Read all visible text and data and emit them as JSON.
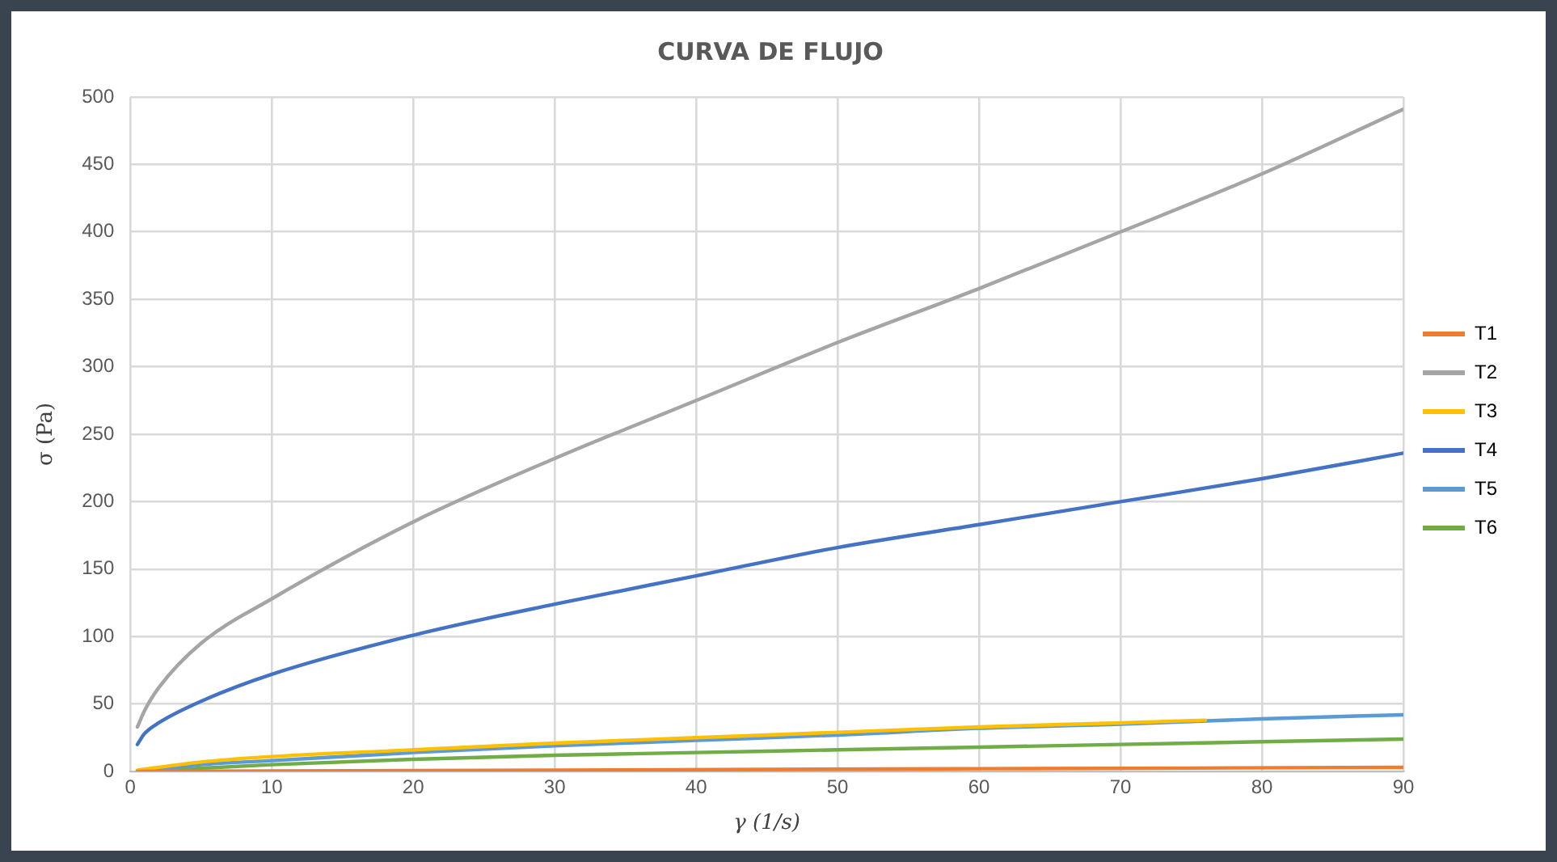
{
  "chart_data": {
    "type": "line",
    "title": "CURVA DE FLUJO",
    "xlabel": "γ (1/s)",
    "ylabel": "σ (Pa)",
    "xlim": [
      0,
      90
    ],
    "xticks": [
      0,
      10,
      20,
      30,
      40,
      50,
      60,
      70,
      80,
      90
    ],
    "ylim": [
      0,
      500
    ],
    "yticks": [
      0,
      50,
      100,
      150,
      200,
      250,
      300,
      350,
      400,
      450,
      500
    ],
    "grid": true,
    "legend": "right",
    "marker": "none",
    "line_style": "solid",
    "series": [
      {
        "name": "T1",
        "color": "#ed7d31",
        "x": [
          0.5,
          30,
          60,
          90
        ],
        "values": [
          0,
          1,
          2,
          3
        ]
      },
      {
        "name": "T2",
        "color": "#a5a5a5",
        "x": [
          0.5,
          1,
          2,
          5,
          10,
          20,
          30,
          40,
          50,
          60,
          70,
          80,
          90
        ],
        "values": [
          33,
          45,
          62,
          95,
          128,
          185,
          232,
          275,
          318,
          358,
          400,
          443,
          491
        ]
      },
      {
        "name": "T3",
        "color": "#ffc000",
        "x": [
          0.5,
          5,
          10,
          20,
          30,
          40,
          50,
          60,
          70,
          76
        ],
        "values": [
          1,
          7,
          11,
          16,
          21,
          25,
          29,
          33,
          36,
          38
        ]
      },
      {
        "name": "T4",
        "color": "#4472c4",
        "x": [
          0.5,
          1,
          2,
          5,
          10,
          20,
          30,
          40,
          50,
          60,
          70,
          80,
          90
        ],
        "values": [
          20,
          28,
          36,
          52,
          72,
          101,
          124,
          145,
          166,
          183,
          200,
          217,
          236
        ]
      },
      {
        "name": "T5",
        "color": "#5b9bd5",
        "x": [
          0.5,
          5,
          10,
          20,
          30,
          40,
          50,
          60,
          70,
          80,
          90
        ],
        "values": [
          0,
          5,
          8,
          14,
          19,
          23,
          27,
          32,
          35,
          39,
          42
        ]
      },
      {
        "name": "T6",
        "color": "#70ad47",
        "x": [
          0.5,
          10,
          20,
          30,
          40,
          50,
          60,
          70,
          80,
          90
        ],
        "values": [
          0,
          5,
          9,
          12,
          14,
          16,
          18,
          20,
          22,
          24
        ]
      }
    ]
  }
}
